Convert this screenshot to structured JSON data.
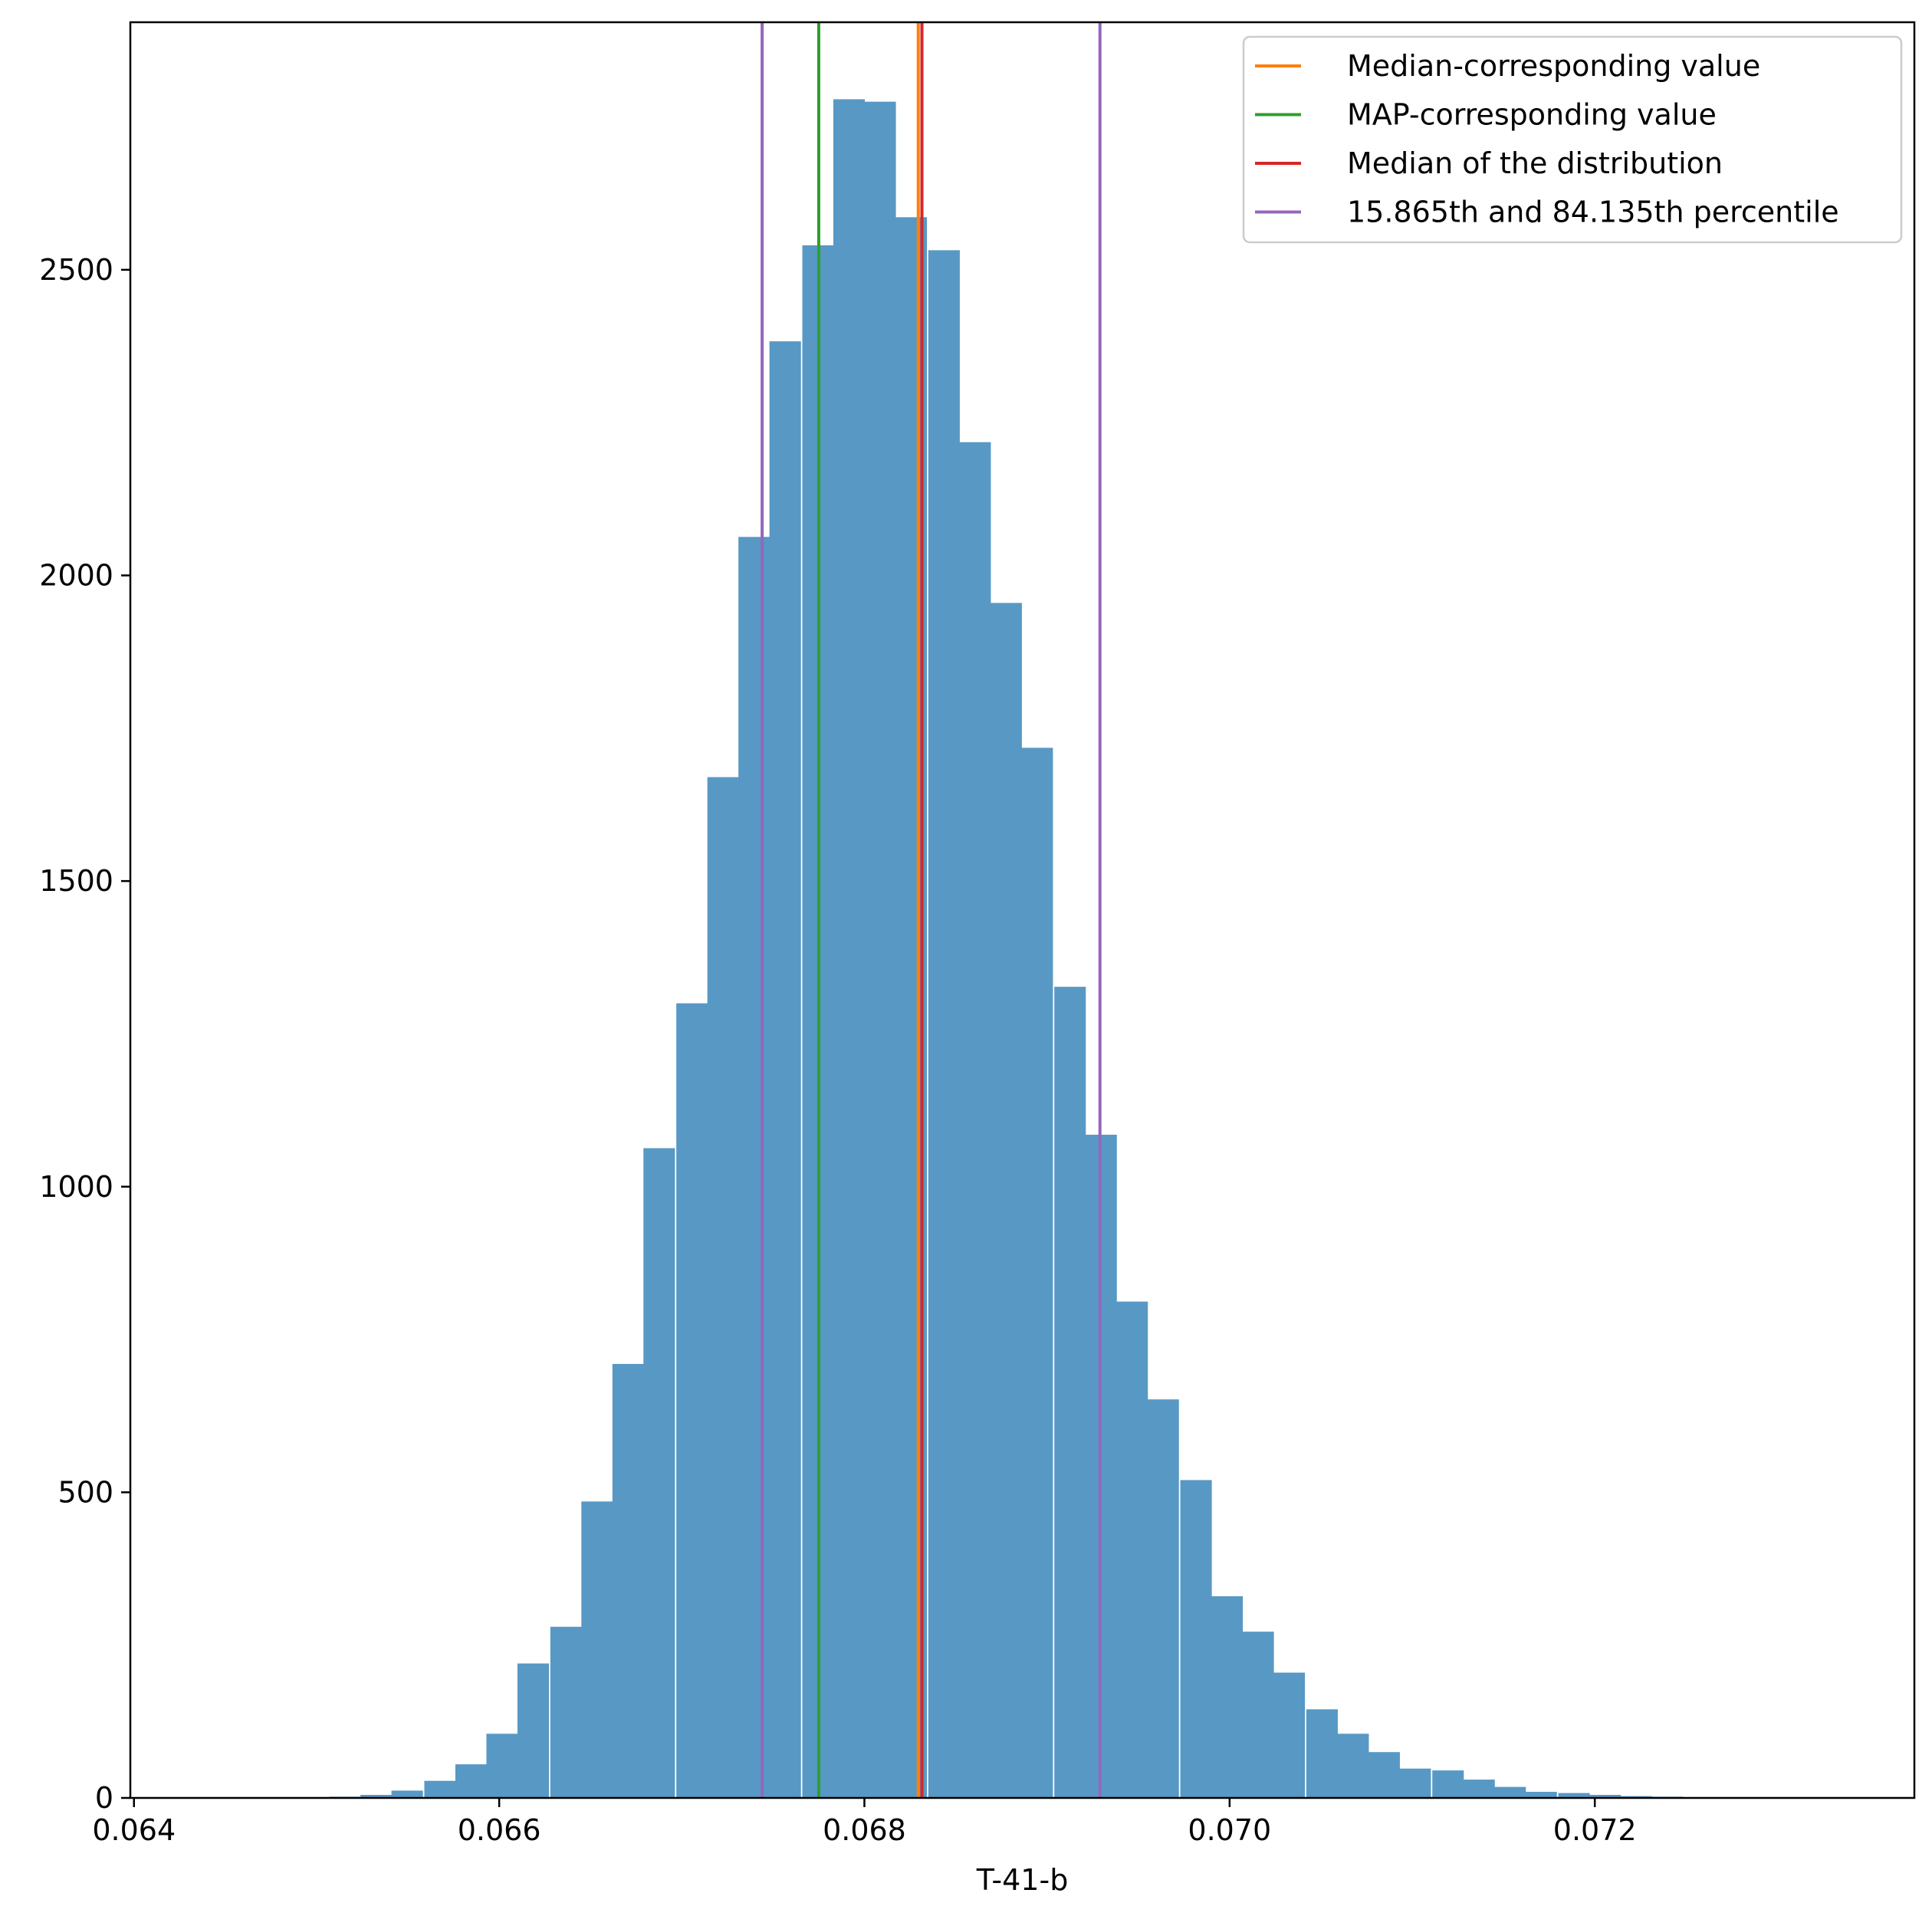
{
  "chart_data": {
    "type": "bar",
    "title": "",
    "xlabel": "T-41-b",
    "ylabel": "",
    "xlim": [
      0.06398,
      0.07375
    ],
    "ylim": [
      0,
      2905
    ],
    "grid": false,
    "legend_position": "top-right",
    "x_ticks": [
      "0.064",
      "0.066",
      "0.068",
      "0.070",
      "0.072"
    ],
    "x_tick_values": [
      0.064,
      0.066,
      0.068,
      0.07,
      0.072
    ],
    "y_ticks": [
      "0",
      "500",
      "1000",
      "1500",
      "2000",
      "2500"
    ],
    "y_tick_values": [
      0,
      500,
      1000,
      1500,
      2000,
      2500
    ],
    "bar_color": "#5898c5",
    "bin_width": 0.0001725,
    "bins_start": [
      0.06507,
      0.06524,
      0.06541,
      0.06559,
      0.06576,
      0.06593,
      0.0661,
      0.06628,
      0.06645,
      0.06662,
      0.06679,
      0.06697,
      0.06714,
      0.06731,
      0.06748,
      0.06766,
      0.06783,
      0.068,
      0.06817,
      0.06835,
      0.06852,
      0.06869,
      0.06886,
      0.06904,
      0.06921,
      0.06938,
      0.06955,
      0.06973,
      0.0699,
      0.07007,
      0.07024,
      0.07042,
      0.07059,
      0.07076,
      0.07093,
      0.07111,
      0.07128,
      0.07145,
      0.07162,
      0.0718,
      0.07197,
      0.07214,
      0.07231,
      0.07249,
      0.07266
    ],
    "values": [
      2,
      5,
      12,
      28,
      55,
      105,
      220,
      280,
      485,
      710,
      1063,
      1300,
      1670,
      2063,
      2383,
      2540,
      2779,
      2775,
      2586,
      2532,
      2218,
      1955,
      1718,
      1327,
      1085,
      812,
      652,
      520,
      330,
      272,
      205,
      145,
      105,
      75,
      48,
      45,
      30,
      18,
      10,
      8,
      5,
      3,
      2,
      1,
      1
    ],
    "series": [
      {
        "name": "Median-corresponding value",
        "x": 0.068295,
        "color": "#ff7f0e"
      },
      {
        "name": "MAP-corresponding value",
        "x": 0.06775,
        "color": "#2ca02c"
      },
      {
        "name": "Median of the distribution",
        "x": 0.068315,
        "color": "#d62728"
      },
      {
        "name": "15.865th and 84.135th percentile",
        "x": [
          0.06744,
          0.06929
        ],
        "color": "#9467bd"
      }
    ]
  }
}
